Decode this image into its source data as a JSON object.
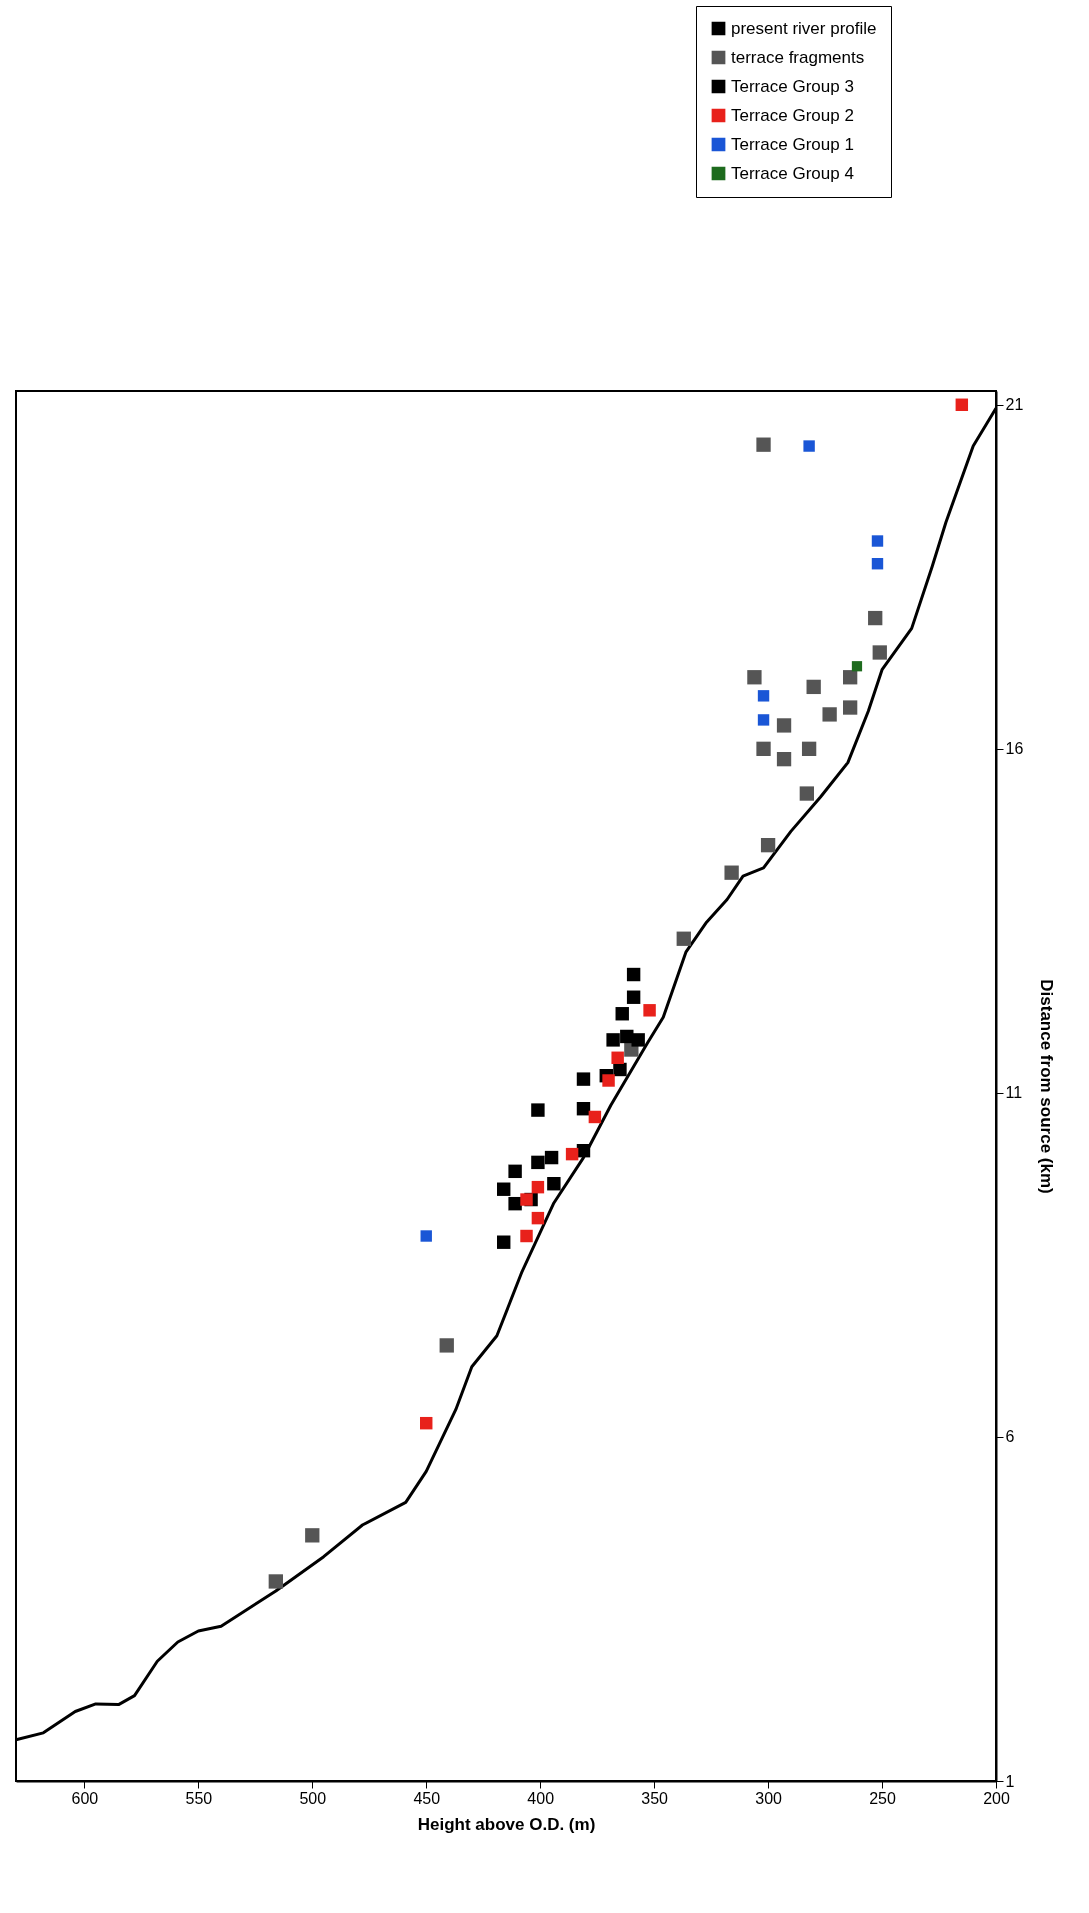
{
  "chart_data": {
    "type": "scatter",
    "xlabel": "Height above O.D. (m)",
    "ylabel": "Distance from source (km)",
    "xlim": [
      630,
      200
    ],
    "xticks": [
      600,
      550,
      500,
      450,
      400,
      350,
      300,
      250,
      200
    ],
    "ylim": [
      1,
      21.2
    ],
    "yticks": [
      1,
      6,
      11,
      16,
      21
    ],
    "grid": false,
    "legend": "top right",
    "series": [
      {
        "name": "present river profile",
        "type": "line",
        "color": "#000000",
        "marker": "none",
        "line_style": "solid",
        "values": [
          1.6,
          1.7,
          2.01,
          2.12,
          2.11,
          2.24,
          2.74,
          3.02,
          3.18,
          3.25,
          3.76,
          4.26,
          4.72,
          5.05,
          5.5,
          6.4,
          7.02,
          7.47,
          8.4,
          9.4,
          10.06,
          10.82,
          11.72,
          12.1,
          12.67,
          13.05,
          13.48,
          13.81,
          14.15,
          14.27,
          14.8,
          15.3,
          15.8,
          16.55,
          17.15,
          17.75,
          18.65,
          19.29,
          20.4,
          20.95
        ],
        "x": [
          630,
          618,
          604,
          595,
          585,
          578,
          568,
          559,
          550,
          540,
          516,
          495,
          478,
          459,
          450,
          437,
          430,
          419,
          408,
          394,
          381,
          369,
          353,
          346,
          340,
          336,
          327,
          318,
          311,
          302,
          290,
          277,
          265,
          256,
          250,
          237,
          228,
          222,
          210,
          200
        ]
      },
      {
        "name": "terrace fragments",
        "color": "#555555",
        "marker": "square",
        "values": [
          20.42,
          17.9,
          17.4,
          17.04,
          16.6,
          16.9,
          16.5,
          17.04,
          16.34,
          15.85,
          16.0,
          16.0,
          15.35,
          14.6,
          14.2,
          13.24,
          11.63,
          7.33,
          4.57,
          3.9
        ],
        "x": [
          302,
          253,
          251,
          264,
          264,
          280,
          273,
          306,
          293,
          293,
          302,
          282,
          283,
          300,
          316,
          337,
          360,
          441,
          500,
          516
        ]
      },
      {
        "name": "Terrace Group 3",
        "color": "#000000",
        "marker": "square",
        "values": [
          8.83,
          9.6,
          9.86,
          9.39,
          10.75,
          9.99,
          9.45,
          10.06,
          9.68,
          11.2,
          10.77,
          10.16,
          11.25,
          11.77,
          12.15,
          11.82,
          12.72,
          12.39,
          11.77,
          11.34
        ],
        "x": [
          416,
          416,
          411,
          411,
          401,
          401,
          404,
          395,
          394,
          381,
          381,
          381,
          371,
          368,
          364,
          362,
          359,
          359,
          357,
          365
        ]
      },
      {
        "name": "Terrace Group 2",
        "color": "#e8211b",
        "marker": "square",
        "values": [
          9.45,
          8.92,
          9.63,
          9.18,
          10.11,
          10.65,
          11.18,
          11.51,
          12.2,
          6.2,
          21.0
        ],
        "x": [
          406,
          406,
          401,
          401,
          386,
          376,
          370,
          366,
          352,
          450,
          215
        ]
      },
      {
        "name": "Terrace Group 1",
        "color": "#1a56d6",
        "marker": "square",
        "values": [
          8.92,
          20.4,
          19.02,
          18.69,
          16.77,
          16.42
        ],
        "x": [
          450,
          282,
          252,
          252,
          302,
          302
        ]
      },
      {
        "name": "Terrace Group 4",
        "color": "#1e6b1e",
        "marker": "square",
        "values": [
          17.2
        ],
        "x": [
          261
        ]
      }
    ]
  }
}
